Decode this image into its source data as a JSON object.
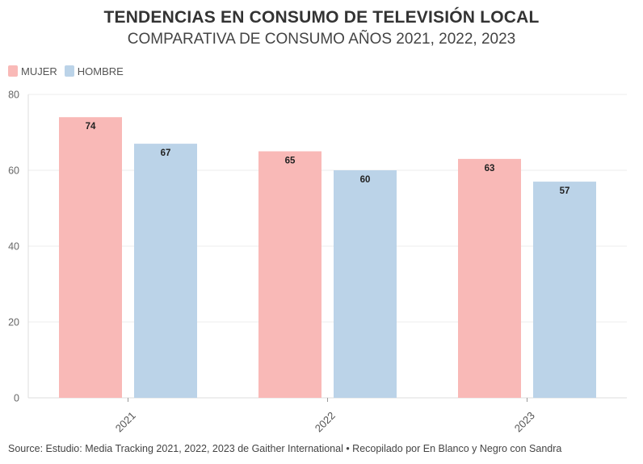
{
  "chart_data": {
    "type": "bar",
    "title": "TENDENCIAS EN CONSUMO DE TELEVISIÓN LOCAL",
    "subtitle": "COMPARATIVA DE CONSUMO AÑOS 2021, 2022, 2023",
    "categories": [
      "2021",
      "2022",
      "2023"
    ],
    "series": [
      {
        "name": "MUJER",
        "values": [
          74,
          65,
          63
        ],
        "color": "#f9b9b7"
      },
      {
        "name": "HOMBRE",
        "values": [
          67,
          60,
          57
        ],
        "color": "#bbd3e8"
      }
    ],
    "ylim": [
      0,
      80
    ],
    "yticks": [
      0,
      20,
      40,
      60,
      80
    ],
    "xlabel": "",
    "ylabel": "",
    "grid": true,
    "legend_position": "top-left"
  },
  "footer": {
    "source": "Source: Estudio: Media Tracking 2021, 2022, 2023 de Gaither International • Recopilado por En Blanco y Negro con Sandra"
  }
}
